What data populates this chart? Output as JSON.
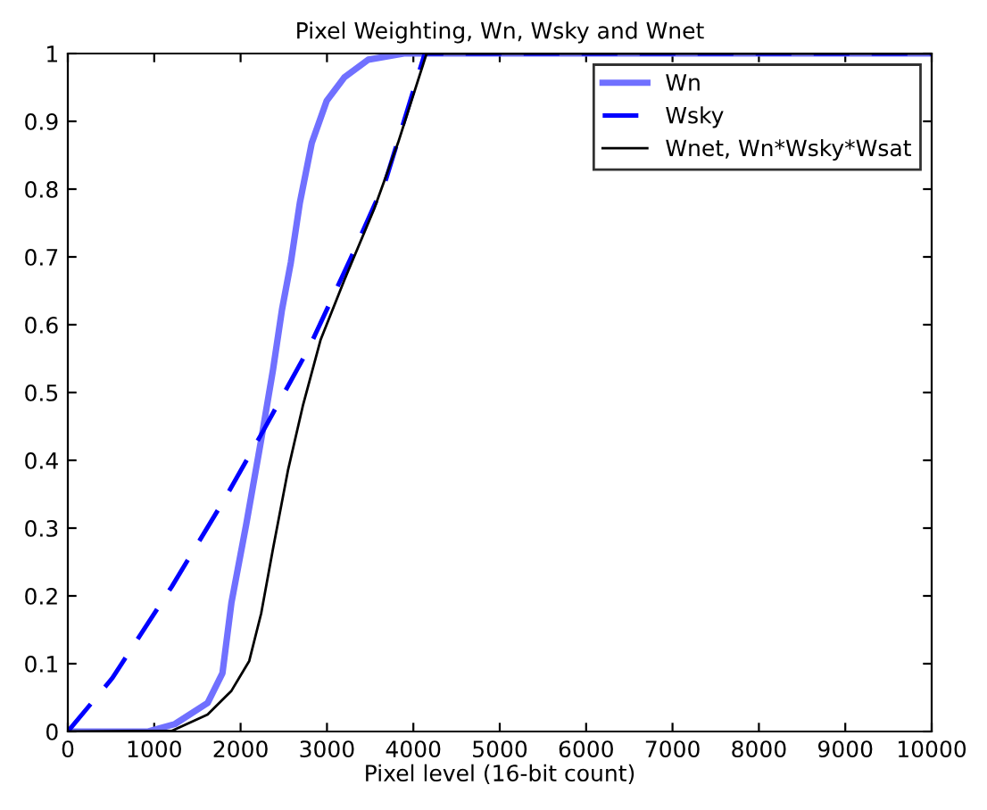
{
  "chart_data": {
    "type": "line",
    "title": "Pixel Weighting, Wn, Wsky and Wnet",
    "xlabel": "Pixel level (16-bit count)",
    "xlim": [
      0,
      10000
    ],
    "xticks": [
      0,
      1000,
      2000,
      3000,
      4000,
      5000,
      6000,
      7000,
      8000,
      9000,
      10000
    ],
    "ylim": [
      0,
      1
    ],
    "yticks": [
      0,
      0.1,
      0.2,
      0.3,
      0.4,
      0.5,
      0.6,
      0.7,
      0.8,
      0.9,
      1
    ],
    "legend": "top right",
    "grid": false,
    "series": [
      {
        "name": "Wn",
        "color": "#7070ff",
        "line_style": "solid",
        "x": [
          0,
          930,
          1240,
          1618,
          1790,
          1894,
          2066,
          2238,
          2376,
          2479,
          2582,
          2686,
          2824,
          2996,
          3202,
          3478,
          3891,
          10000
        ],
        "values": [
          0,
          0,
          0.011,
          0.042,
          0.086,
          0.19,
          0.306,
          0.43,
          0.534,
          0.622,
          0.692,
          0.78,
          0.868,
          0.93,
          0.965,
          0.991,
          1,
          1
        ]
      },
      {
        "name": "Wsky",
        "color": "#0000ff",
        "line_style": "dashed",
        "x": [
          0,
          517,
          1205,
          1825,
          2238,
          2789,
          3271,
          3685,
          4132,
          10000
        ],
        "values": [
          0,
          0.079,
          0.214,
          0.345,
          0.438,
          0.565,
          0.697,
          0.815,
          1,
          1
        ]
      },
      {
        "name": "Wnet, Wn*Wsky*Wsat",
        "color": "#000000",
        "line_style": "solid",
        "x": [
          0,
          1205,
          1618,
          1894,
          2100,
          2238,
          2376,
          2548,
          2720,
          2927,
          3202,
          3547,
          3822,
          4153,
          10000
        ],
        "values": [
          0,
          0.001,
          0.025,
          0.06,
          0.104,
          0.174,
          0.27,
          0.385,
          0.48,
          0.578,
          0.666,
          0.771,
          0.868,
          1,
          1
        ]
      }
    ]
  }
}
